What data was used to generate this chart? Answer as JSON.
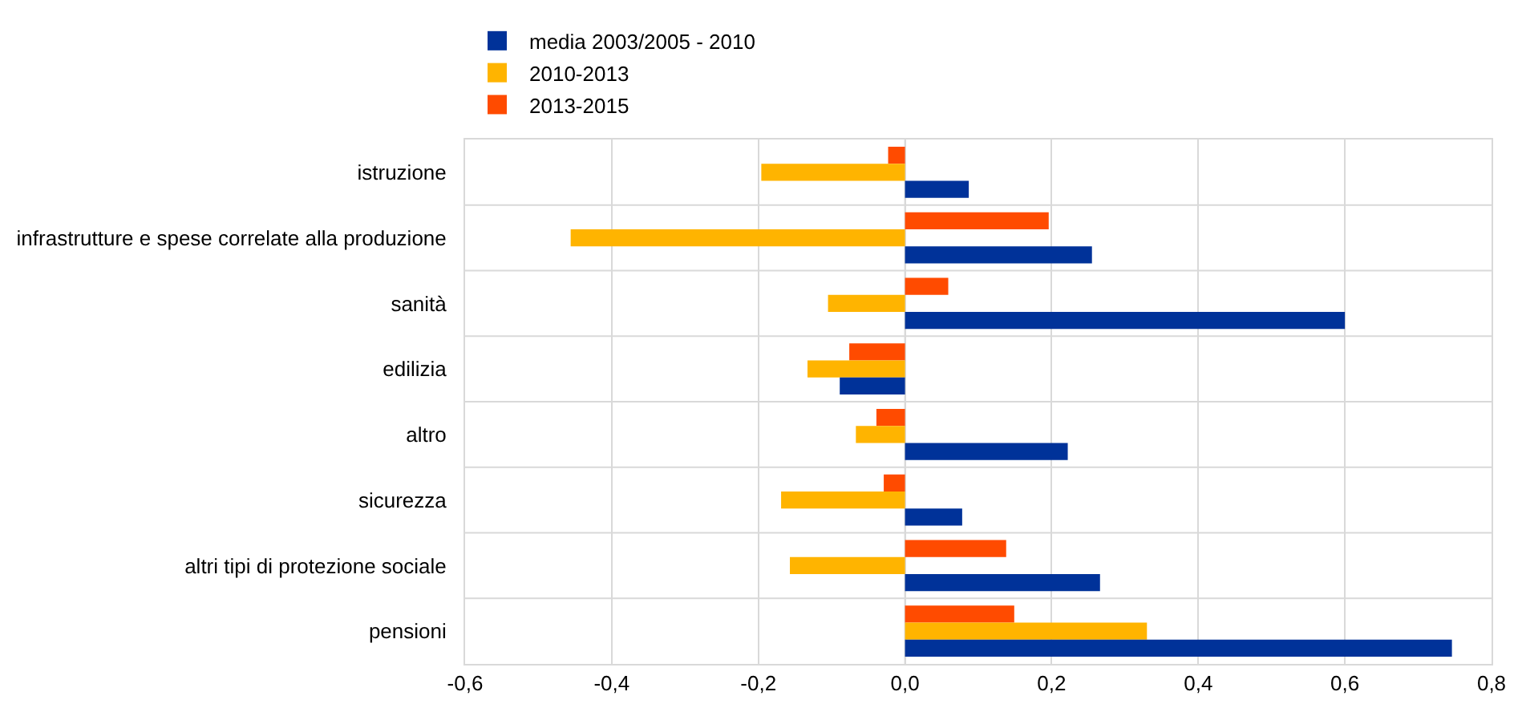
{
  "chart_data": {
    "type": "bar",
    "orientation": "horizontal",
    "categories": [
      "istruzione",
      "infrastrutture e spese correlate alla produzione",
      "sanità",
      "edilizia",
      "altro",
      "sicurezza",
      "altri tipi di protezione sociale",
      "pensioni"
    ],
    "series": [
      {
        "name": "media 2003/2005 - 2010",
        "color": "#003299",
        "values": [
          0.087,
          0.255,
          0.6,
          -0.089,
          0.222,
          0.078,
          0.266,
          0.746
        ]
      },
      {
        "name": "2010-2013",
        "color": "#ffb400",
        "values": [
          -0.196,
          -0.456,
          -0.105,
          -0.133,
          -0.067,
          -0.169,
          -0.157,
          0.33
        ]
      },
      {
        "name": "2013-2015",
        "color": "#ff4b00",
        "values": [
          -0.023,
          0.196,
          0.059,
          -0.076,
          -0.039,
          -0.029,
          0.138,
          0.149
        ]
      }
    ],
    "xlim": [
      -0.6,
      0.8
    ],
    "xticks": [
      {
        "value": -0.6,
        "label": "-0,6"
      },
      {
        "value": -0.4,
        "label": "-0,4"
      },
      {
        "value": -0.2,
        "label": "-0,2"
      },
      {
        "value": 0,
        "label": "0,0"
      },
      {
        "value": 0.2,
        "label": "0,2"
      },
      {
        "value": 0.4,
        "label": "0,4"
      },
      {
        "value": 0.6,
        "label": "0,6"
      },
      {
        "value": 0.8,
        "label": "0,8"
      }
    ],
    "grid": true,
    "legend": "top left"
  }
}
